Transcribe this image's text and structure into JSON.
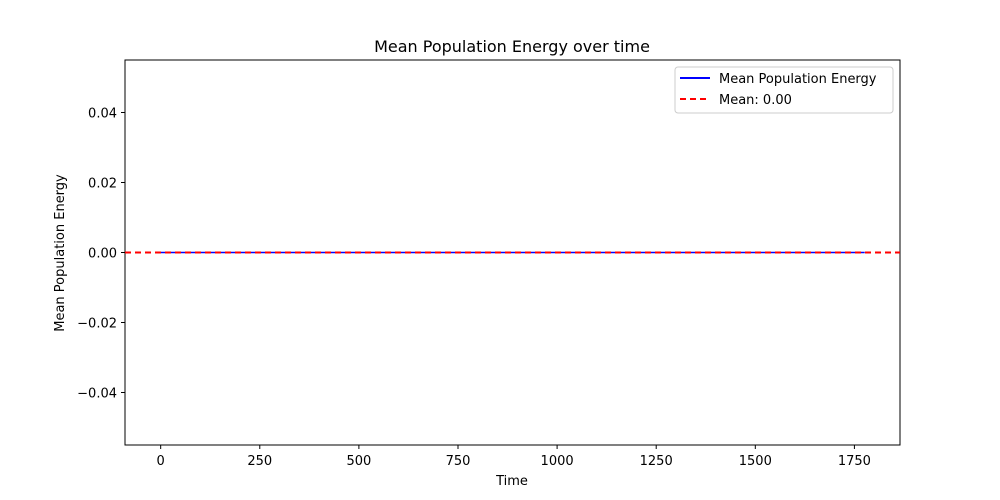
{
  "chart_data": {
    "type": "line",
    "title": "Mean Population Energy over time",
    "xlabel": "Time",
    "ylabel": "Mean Population Energy",
    "xlim": [
      -90,
      1865
    ],
    "ylim": [
      -0.055,
      0.055
    ],
    "xticks": [
      0,
      250,
      500,
      750,
      1000,
      1250,
      1500,
      1750
    ],
    "yticks": [
      -0.04,
      -0.02,
      0.0,
      0.02,
      0.04
    ],
    "xtick_labels": [
      "0",
      "250",
      "500",
      "750",
      "1000",
      "1250",
      "1500",
      "1750"
    ],
    "ytick_labels": [
      "−0.04",
      "−0.02",
      "0.00",
      "0.02",
      "0.04"
    ],
    "grid": false,
    "legend_position": "top-right",
    "series": [
      {
        "name": "Mean Population Energy",
        "color": "#0000ff",
        "style": "solid",
        "x": [
          0,
          1776
        ],
        "y": [
          0.0,
          0.0
        ]
      }
    ],
    "reference_lines": [
      {
        "name": "Mean: 0.00",
        "color": "#ff0000",
        "style": "dashed",
        "orientation": "horizontal",
        "y": 0.0
      }
    ]
  }
}
